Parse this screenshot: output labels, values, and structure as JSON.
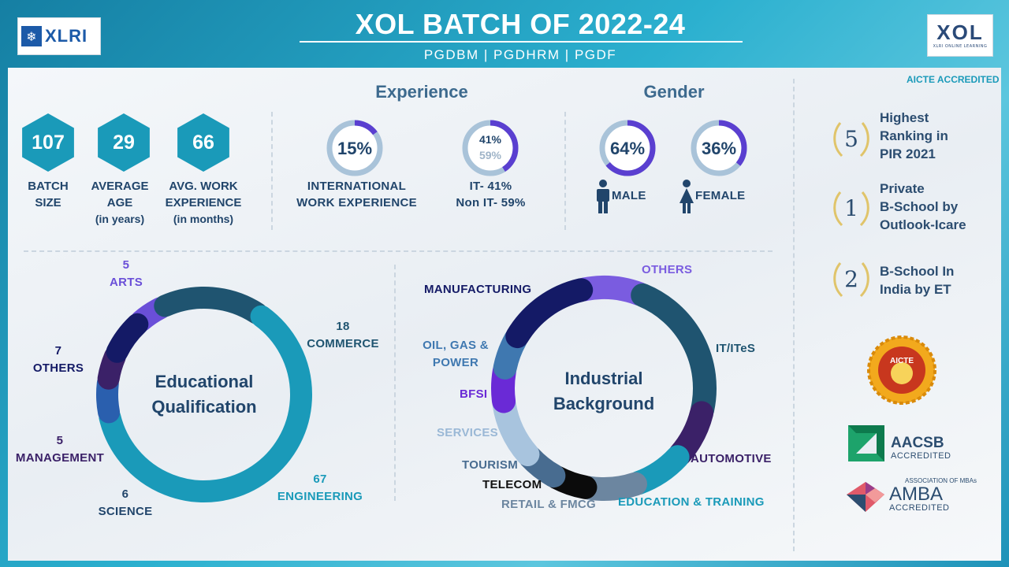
{
  "header": {
    "title": "XOL BATCH OF 2022-24",
    "subtitle": "PGDBM | PGDHRM | PGDF",
    "xlri_logo": "XLRI",
    "xol_logo": "XOL",
    "xol_logo_sub": "XLRI ONLINE LEARNING"
  },
  "stats": [
    {
      "value": "107",
      "label1": "BATCH",
      "label2": "SIZE",
      "label3": ""
    },
    {
      "value": "29",
      "label1": "AVERAGE",
      "label2": "AGE",
      "label3": "(in years)"
    },
    {
      "value": "66",
      "label1": "AVG. WORK",
      "label2": "EXPERIENCE",
      "label3": "(in months)"
    }
  ],
  "experience": {
    "title": "Experience",
    "international": {
      "percent": 15,
      "display": "15%",
      "label1": "INTERNATIONAL",
      "label2": "WORK EXPERIENCE"
    },
    "it": {
      "it_percent": 41,
      "non_it_percent": 59,
      "inner_top": "41%",
      "inner_bottom": "59%",
      "label1": "IT- 41%",
      "label2": "Non IT- 59%"
    }
  },
  "gender": {
    "title": "Gender",
    "male": {
      "percent": 64,
      "display": "64%",
      "label": "MALE"
    },
    "female": {
      "percent": 36,
      "display": "36%",
      "label": "FEMALE"
    }
  },
  "educational": {
    "center1": "Educational",
    "center2": "Qualification",
    "labels": {
      "arts_n": "5",
      "arts": "ARTS",
      "commerce_n": "18",
      "commerce": "COMMERCE",
      "engineering_n": "67",
      "engineering": "ENGINEERING",
      "science_n": "6",
      "science": "SCIENCE",
      "management_n": "5",
      "management": "MANAGEMENT",
      "others_n": "7",
      "others": "OTHERS"
    }
  },
  "industrial": {
    "center1": "Industrial",
    "center2": "Background",
    "labels": {
      "others": "OTHERS",
      "it": "IT/ITeS",
      "automotive": "AUTOMOTIVE",
      "education": "EDUCATION & TRAINING",
      "retail": "RETAIL & FMCG",
      "telecom": "TELECOM",
      "tourism": "TOURISM",
      "services": "SERVICES",
      "bfsi": "BFSI",
      "oil1": "OIL, GAS &",
      "oil2": "POWER",
      "manufacturing": "MANUFACTURING"
    }
  },
  "accreditation": {
    "aicte_accredited": "AICTE ACCREDITED",
    "rankings": [
      {
        "number": "5",
        "line1": "Highest",
        "line2": "Ranking in",
        "line3": "PIR 2021"
      },
      {
        "number": "1",
        "line1": "Private",
        "line2": "B-School by",
        "line3": "Outlook-Icare"
      },
      {
        "number": "2",
        "line1": "B-School In",
        "line2": "India by ET",
        "line3": ""
      }
    ],
    "aicte_seal": "AICTE",
    "aacsb": "AACSB",
    "aacsb_sub": "ACCREDITED",
    "amba_top": "ASSOCIATION OF MBAs",
    "amba": "AMBA",
    "amba_sub": "ACCREDITED"
  },
  "chart_data": [
    {
      "type": "pie",
      "title": "Educational Qualification",
      "categories": [
        "ARTS",
        "COMMERCE",
        "ENGINEERING",
        "SCIENCE",
        "MANAGEMENT",
        "OTHERS"
      ],
      "values": [
        5,
        18,
        67,
        6,
        5,
        7
      ]
    },
    {
      "type": "pie",
      "title": "Industrial Background",
      "categories": [
        "OTHERS",
        "IT/ITeS",
        "AUTOMOTIVE",
        "EDUCATION & TRAINING",
        "RETAIL & FMCG",
        "TELECOM",
        "TOURISM",
        "SERVICES",
        "BFSI",
        "OIL, GAS & POWER",
        "MANUFACTURING"
      ],
      "values": [
        7,
        17,
        6,
        6,
        6,
        4,
        4,
        7,
        4,
        4,
        10
      ]
    }
  ],
  "colors": {
    "teal": "#1a9ab9",
    "navy": "#21456b",
    "purple": "#5a3fd0"
  }
}
